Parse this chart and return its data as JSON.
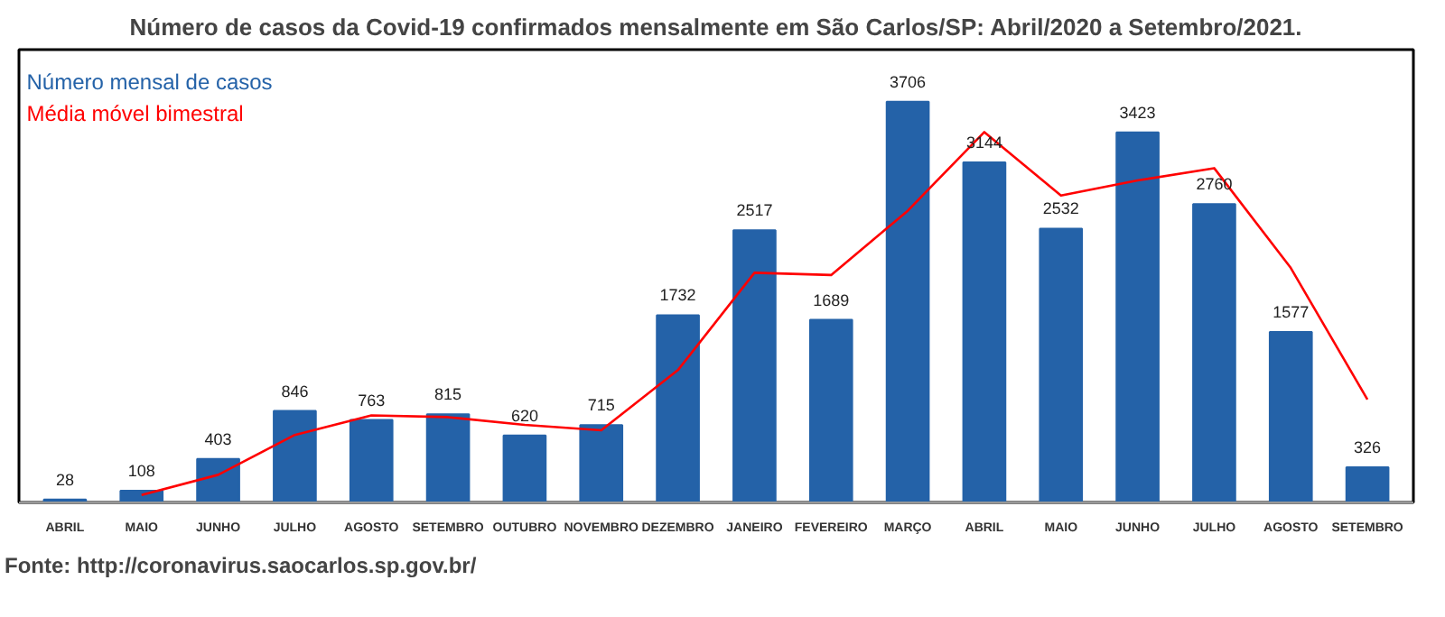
{
  "chart_data": {
    "type": "bar",
    "title": "Número de casos da Covid-19 confirmados mensalmente em São Carlos/SP: Abril/2020 a Setembro/2021.",
    "categories": [
      "ABRIL",
      "MAIO",
      "JUNHO",
      "JULHO",
      "AGOSTO",
      "SETEMBRO",
      "OUTUBRO",
      "NOVEMBRO",
      "DEZEMBRO",
      "JANEIRO",
      "FEVEREIRO",
      "MARÇO",
      "ABRIL",
      "MAIO",
      "JUNHO",
      "JULHO",
      "AGOSTO",
      "SETEMBRO"
    ],
    "series": [
      {
        "name": "Número mensal de casos",
        "color": "#2462a8",
        "values": [
          28,
          108,
          403,
          846,
          763,
          815,
          620,
          715,
          1732,
          2517,
          1689,
          3706,
          3144,
          2532,
          3423,
          2760,
          1577,
          326
        ],
        "value_labels": [
          "28",
          "108",
          "403",
          "846",
          "763",
          "815",
          "620",
          "715",
          "1732",
          "2517",
          "1689",
          "3706",
          "3144",
          "2532",
          "3423",
          "2760",
          "1577",
          "326"
        ]
      },
      {
        "name": "Média móvel bimestral",
        "type": "line",
        "color": "#ff0000",
        "values": [
          null,
          68,
          255.5,
          624.5,
          804.5,
          789,
          717.5,
          667.5,
          1223.5,
          2124.5,
          2103,
          2697.5,
          3425,
          2838,
          2977.5,
          3091.5,
          2168.5,
          951.5
        ]
      }
    ],
    "grid": false,
    "annotations": [
      "Fonte: http://coronavirus.saocarlos.sp.gov.br/"
    ]
  }
}
